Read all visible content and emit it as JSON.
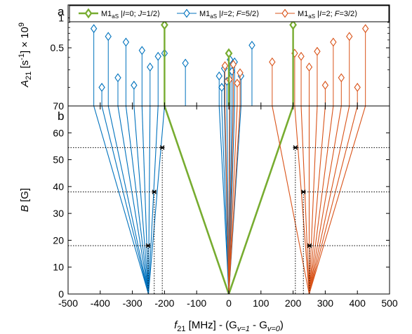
{
  "chart_data": [
    {
      "panel": "a",
      "type": "scatter",
      "style": "stem with diamond markers",
      "ylabel": "A_21 [s^-1] × 10^9",
      "yscale": "log",
      "ylim": [
        0.13,
        1.35
      ],
      "yticks": [
        0.5,
        1
      ],
      "ytick_labels": [
        "0.5",
        "1"
      ],
      "legend_placement": "top",
      "legend_labels": [
        "M1_aS |I=0; J=1/2⟩",
        "M1_aS |I=2; F=5/2⟩",
        "M1_aS |I=2; F=3/2⟩"
      ],
      "series": [
        {
          "name": "M1_aS |I=0; J=1/2⟩",
          "color": "#77ac30",
          "points": [
            [
              -200,
              0.85
            ],
            [
              0,
              0.44
            ],
            [
              200,
              0.85
            ]
          ]
        },
        {
          "name": "M1_aS |I=2; F=5/2⟩",
          "color": "#0072bd",
          "points": [
            [
              -420,
              0.78
            ],
            [
              -395,
              0.2
            ],
            [
              -375,
              0.65
            ],
            [
              -345,
              0.25
            ],
            [
              -320,
              0.57
            ],
            [
              -295,
              0.21
            ],
            [
              -270,
              0.47
            ],
            [
              -245,
              0.32
            ],
            [
              -220,
              0.41
            ],
            [
              -200,
              0.44
            ],
            [
              -135,
              0.35
            ],
            [
              -30,
              0.26
            ],
            [
              -22,
              0.2
            ],
            [
              -14,
              0.31
            ],
            [
              -6,
              0.23
            ],
            [
              4,
              0.38
            ],
            [
              10,
              0.29
            ],
            [
              18,
              0.36
            ],
            [
              38,
              0.26
            ],
            [
              72,
              0.53
            ]
          ]
        },
        {
          "name": "M1_aS |I=2; F=3/2⟩",
          "color": "#d95319",
          "points": [
            [
              -12,
              0.33
            ],
            [
              2,
              0.24
            ],
            [
              14,
              0.34
            ],
            [
              26,
              0.22
            ],
            [
              35,
              0.28
            ],
            [
              135,
              0.36
            ],
            [
              205,
              0.44
            ],
            [
              225,
              0.41
            ],
            [
              250,
              0.32
            ],
            [
              275,
              0.46
            ],
            [
              300,
              0.21
            ],
            [
              325,
              0.57
            ],
            [
              350,
              0.25
            ],
            [
              375,
              0.65
            ],
            [
              400,
              0.2
            ],
            [
              425,
              0.78
            ]
          ]
        }
      ]
    },
    {
      "panel": "b",
      "type": "line",
      "xlabel": "f_21 [MHz] - (G_v=1 - G_v=0)",
      "ylabel": "B [G]",
      "xlim": [
        -500,
        500
      ],
      "ylim": [
        0,
        70
      ],
      "xticks": [
        -500,
        -400,
        -300,
        -200,
        -100,
        0,
        100,
        200,
        300,
        400,
        500
      ],
      "yticks": [
        0,
        10,
        20,
        30,
        40,
        50,
        60,
        70
      ],
      "series": [
        {
          "name": "M1_aS |I=0; J=1/2⟩",
          "color": "#77ac30",
          "lines": [
            [
              [
                0,
                0
              ],
              [
                -200,
                70
              ]
            ],
            [
              [
                0,
                0
              ],
              [
                200,
                70
              ]
            ]
          ]
        },
        {
          "name": "M1_aS |I=2; F=5/2⟩",
          "color": "#0072bd",
          "lines": [
            [
              [
                -250,
                0
              ],
              [
                -420,
                70
              ]
            ],
            [
              [
                -250,
                0
              ],
              [
                -395,
                70
              ]
            ],
            [
              [
                -250,
                0
              ],
              [
                -375,
                70
              ]
            ],
            [
              [
                -250,
                0
              ],
              [
                -345,
                70
              ]
            ],
            [
              [
                -250,
                0
              ],
              [
                -320,
                70
              ]
            ],
            [
              [
                -250,
                0
              ],
              [
                -295,
                70
              ]
            ],
            [
              [
                -250,
                0
              ],
              [
                -270,
                70
              ]
            ],
            [
              [
                -250,
                0
              ],
              [
                -245,
                70
              ]
            ],
            [
              [
                -250,
                0
              ],
              [
                -220,
                70
              ]
            ],
            [
              [
                -250,
                0
              ],
              [
                -200,
                70
              ]
            ],
            [
              [
                0,
                0
              ],
              [
                -30,
                70
              ]
            ],
            [
              [
                0,
                0
              ],
              [
                -22,
                70
              ]
            ],
            [
              [
                0,
                0
              ],
              [
                -14,
                70
              ]
            ],
            [
              [
                0,
                0
              ],
              [
                -6,
                70
              ]
            ],
            [
              [
                0,
                0
              ],
              [
                4,
                70
              ]
            ],
            [
              [
                0,
                0
              ],
              [
                10,
                70
              ]
            ],
            [
              [
                0,
                0
              ],
              [
                18,
                70
              ]
            ],
            [
              [
                0,
                0
              ],
              [
                38,
                70
              ]
            ]
          ]
        },
        {
          "name": "M1_aS |I=2; F=3/2⟩",
          "color": "#d95319",
          "lines": [
            [
              [
                0,
                0
              ],
              [
                -12,
                70
              ]
            ],
            [
              [
                0,
                0
              ],
              [
                2,
                70
              ]
            ],
            [
              [
                0,
                0
              ],
              [
                14,
                70
              ]
            ],
            [
              [
                0,
                0
              ],
              [
                26,
                70
              ]
            ],
            [
              [
                0,
                0
              ],
              [
                35,
                70
              ]
            ],
            [
              [
                250,
                0
              ],
              [
                135,
                70
              ]
            ],
            [
              [
                250,
                0
              ],
              [
                205,
                70
              ]
            ],
            [
              [
                250,
                0
              ],
              [
                225,
                70
              ]
            ],
            [
              [
                250,
                0
              ],
              [
                250,
                70
              ]
            ],
            [
              [
                250,
                0
              ],
              [
                275,
                70
              ]
            ],
            [
              [
                250,
                0
              ],
              [
                300,
                70
              ]
            ],
            [
              [
                250,
                0
              ],
              [
                325,
                70
              ]
            ],
            [
              [
                250,
                0
              ],
              [
                350,
                70
              ]
            ],
            [
              [
                250,
                0
              ],
              [
                375,
                70
              ]
            ],
            [
              [
                250,
                0
              ],
              [
                400,
                70
              ]
            ],
            [
              [
                250,
                0
              ],
              [
                425,
                70
              ]
            ]
          ]
        }
      ],
      "markers": [
        {
          "x": -207,
          "y": 54.5
        },
        {
          "x": -232,
          "y": 38
        },
        {
          "x": -251,
          "y": 18
        },
        {
          "x": 207,
          "y": 54.5
        },
        {
          "x": 232,
          "y": 38
        },
        {
          "x": 251,
          "y": 18
        }
      ],
      "guides": [
        {
          "x": -207,
          "y": 54.5
        },
        {
          "x": -232,
          "y": 38
        },
        {
          "x": -251,
          "y": 18
        },
        {
          "x": 207,
          "y": 54.5
        },
        {
          "x": 232,
          "y": 38
        },
        {
          "x": 251,
          "y": 18
        }
      ]
    }
  ]
}
